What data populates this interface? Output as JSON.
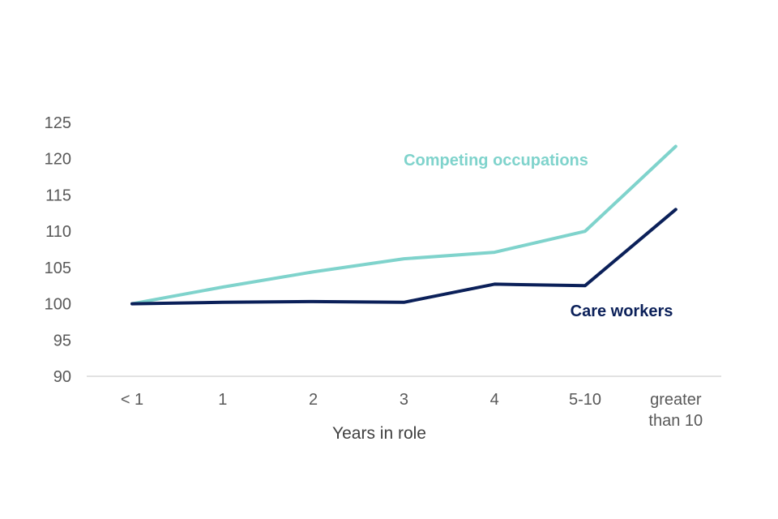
{
  "chart_data": {
    "type": "line",
    "categories": [
      "< 1",
      "1",
      "2",
      "3",
      "4",
      "5-10",
      "greater than 10"
    ],
    "category_lines": [
      [
        "< 1"
      ],
      [
        "1"
      ],
      [
        "2"
      ],
      [
        "3"
      ],
      [
        "4"
      ],
      [
        "5-10"
      ],
      [
        "greater",
        "than 10"
      ]
    ],
    "xlabel": "Years in role",
    "ylabel": "",
    "ylim": [
      90,
      125
    ],
    "yticks": [
      90,
      95,
      100,
      105,
      110,
      115,
      120,
      125
    ],
    "grid": false,
    "legend": "inline labels",
    "series": [
      {
        "name": "Competing occupations",
        "color": "#7fd3cc",
        "values": [
          100,
          102.3,
          104.4,
          106.2,
          107.1,
          110,
          121.7
        ]
      },
      {
        "name": "Care workers",
        "color": "#0b2059",
        "values": [
          100,
          100.2,
          100.3,
          100.2,
          102.7,
          102.5,
          113
        ]
      }
    ]
  }
}
